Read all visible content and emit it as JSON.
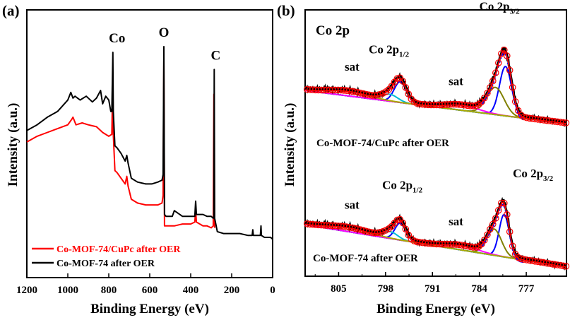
{
  "chart_data": [
    {
      "panel_label": "(a)",
      "type": "line",
      "xlabel": "Binding Energy (eV)",
      "ylabel": "Intensity (a.u.)",
      "xlim": [
        1200,
        0
      ],
      "x_reversed": true,
      "x_ticks": [
        "1200",
        "1000",
        "800",
        "600",
        "400",
        "200",
        "0"
      ],
      "peak_labels": [
        {
          "text": "Co",
          "x": 780
        },
        {
          "text": "O",
          "x": 531
        },
        {
          "text": "C",
          "x": 285
        }
      ],
      "legend": [
        "Co-MOF-74/CuPc after OER",
        "Co-MOF-74 after OER"
      ],
      "series": [
        {
          "name": "Co-MOF-74/CuPc after OER",
          "color": "#ff0000",
          "x": [
            1200,
            1150,
            1100,
            1050,
            1000,
            980,
            975,
            960,
            930,
            900,
            860,
            830,
            800,
            785,
            780,
            778,
            770,
            760,
            740,
            720,
            712,
            706,
            690,
            660,
            620,
            590,
            560,
            540,
            535,
            531,
            528,
            520,
            480,
            440,
            400,
            380,
            376,
            372,
            340,
            320,
            300,
            290,
            287,
            285,
            283
          ],
          "y": [
            0.5,
            0.53,
            0.55,
            0.57,
            0.59,
            0.62,
            0.63,
            0.59,
            0.6,
            0.59,
            0.58,
            0.55,
            0.53,
            0.54,
            0.86,
            0.54,
            0.35,
            0.34,
            0.31,
            0.28,
            0.32,
            0.27,
            0.2,
            0.18,
            0.17,
            0.17,
            0.17,
            0.18,
            0.22,
            0.93,
            0.06,
            0.06,
            0.06,
            0.07,
            0.07,
            0.08,
            0.14,
            0.08,
            0.06,
            0.06,
            0.05,
            0.06,
            0.75,
            0.09,
            0.05
          ]
        },
        {
          "name": "Co-MOF-74 after OER",
          "color": "#000000",
          "x": [
            1200,
            1150,
            1100,
            1050,
            1000,
            985,
            975,
            965,
            940,
            910,
            880,
            860,
            840,
            830,
            815,
            800,
            790,
            785,
            780,
            778,
            770,
            760,
            740,
            720,
            712,
            706,
            690,
            660,
            620,
            590,
            560,
            540,
            535,
            531,
            528,
            520,
            490,
            480,
            440,
            400,
            380,
            376,
            372,
            340,
            320,
            300,
            290,
            287,
            285,
            283,
            270,
            240,
            200,
            160,
            120,
            100,
            97,
            94,
            80,
            70,
            60,
            57,
            55,
            40,
            20,
            10,
            0
          ],
          "y": [
            0.56,
            0.59,
            0.63,
            0.66,
            0.72,
            0.76,
            0.73,
            0.74,
            0.72,
            0.74,
            0.71,
            0.73,
            0.77,
            0.7,
            0.74,
            0.72,
            0.66,
            0.66,
            0.97,
            0.66,
            0.48,
            0.47,
            0.44,
            0.4,
            0.43,
            0.39,
            0.31,
            0.29,
            0.28,
            0.28,
            0.29,
            0.3,
            0.33,
            1.0,
            0.12,
            0.11,
            0.11,
            0.14,
            0.11,
            0.11,
            0.11,
            0.19,
            0.12,
            0.12,
            0.11,
            0.11,
            0.1,
            0.11,
            0.88,
            0.1,
            0.03,
            0.02,
            0.02,
            0.02,
            0.01,
            0.01,
            0.04,
            0.01,
            0.01,
            0.01,
            0.01,
            0.06,
            0.01,
            0.0,
            0.0,
            0.0,
            -0.01
          ]
        }
      ]
    },
    {
      "panel_label": "(b)",
      "type": "line",
      "title": "Co 2p",
      "xlabel": "Binding Energy (eV)",
      "ylabel": "Intensity (a.u.)",
      "xlim": [
        810,
        771
      ],
      "x_reversed": true,
      "x_ticks": [
        "805",
        "798",
        "791",
        "784",
        "777"
      ],
      "curve_labels": {
        "top": "Co-MOF-74/CuPc after OER",
        "bottom": "Co-MOF-74 after OER"
      },
      "peak_labels": {
        "top": [
          {
            "text": "sat",
            "x": 803
          },
          {
            "text": "Co 2p",
            "sub": "1/2",
            "x": 797.5
          },
          {
            "text": "sat",
            "x": 787.5
          },
          {
            "text": "Co 2p",
            "sub": "3/2",
            "x": 781
          }
        ],
        "bottom": [
          {
            "text": "sat",
            "x": 803
          },
          {
            "text": "Co 2p",
            "sub": "1/2",
            "x": 795.5
          },
          {
            "text": "sat",
            "x": 787.5
          },
          {
            "text": "Co 2p",
            "sub": "3/2",
            "x": 776
          }
        ]
      },
      "fit_components": [
        {
          "role": "experimental",
          "color": "#000000"
        },
        {
          "role": "fit envelope",
          "color": "#ff0000"
        },
        {
          "role": "data points",
          "color": "#ff0000",
          "marker": "open-circle"
        },
        {
          "role": "Co 2p3/2 main",
          "color": "#0000ff"
        },
        {
          "role": "Co 2p3/2 shoulder",
          "color": "#808000"
        },
        {
          "role": "Co 2p1/2 main",
          "color": "#0000ff"
        },
        {
          "role": "Co 2p1/2 shoulder",
          "color": "#00bcd4"
        },
        {
          "role": "satellite",
          "color": "#ff00ff"
        },
        {
          "role": "satellite",
          "color": "#aaaa00"
        },
        {
          "role": "background",
          "color": "#00b0b0"
        }
      ],
      "series": [
        {
          "name": "Co-MOF-74/CuPc after OER",
          "peaks": [
            {
              "center": 780.1,
              "amp": 1.0,
              "width": 0.9
            },
            {
              "center": 781.6,
              "amp": 0.55,
              "width": 1.3
            },
            {
              "center": 795.8,
              "amp": 0.42,
              "width": 0.9
            },
            {
              "center": 797.4,
              "amp": 0.14,
              "width": 1.2
            },
            {
              "center": 786.5,
              "amp": 0.1,
              "width": 2.5
            },
            {
              "center": 803.5,
              "amp": 0.09,
              "width": 3.0
            }
          ]
        },
        {
          "name": "Co-MOF-74 after OER",
          "peaks": [
            {
              "center": 780.3,
              "amp": 1.0,
              "width": 0.75
            },
            {
              "center": 781.8,
              "amp": 0.62,
              "width": 1.1
            },
            {
              "center": 795.8,
              "amp": 0.4,
              "width": 0.8
            },
            {
              "center": 797.3,
              "amp": 0.16,
              "width": 1.1
            },
            {
              "center": 786.5,
              "amp": 0.1,
              "width": 2.5
            },
            {
              "center": 803.5,
              "amp": 0.09,
              "width": 3.0
            }
          ]
        }
      ]
    }
  ]
}
